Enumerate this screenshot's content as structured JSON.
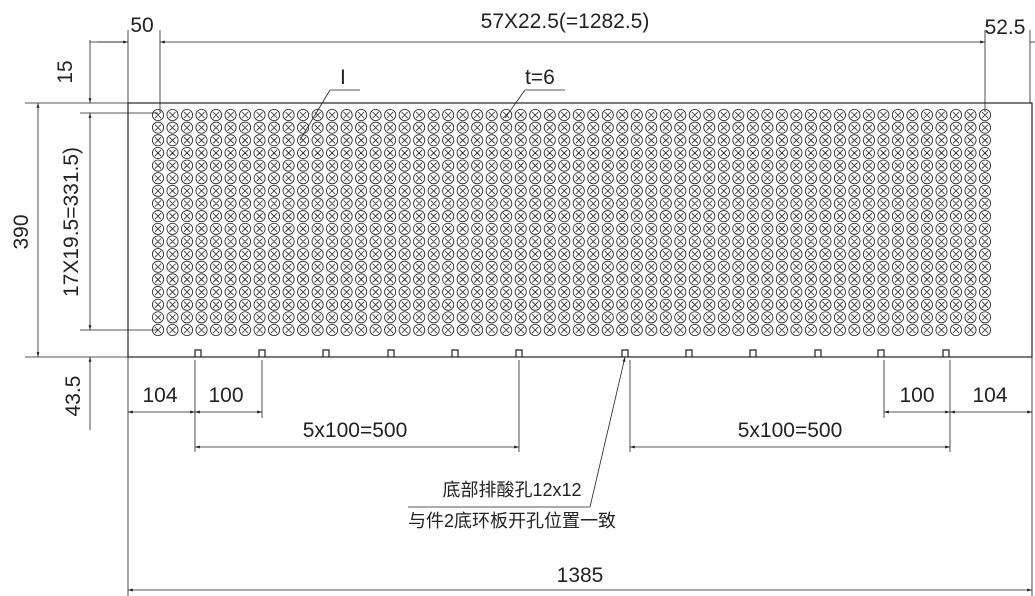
{
  "dimensions": {
    "left_margin": "50",
    "hole_pitch_x": "57X22.5(=1282.5)",
    "right_margin": "52.5",
    "top_margin": "15",
    "total_height": "390",
    "hole_pitch_y": "17X19.5=331.5)",
    "bottom_margin": "43.5",
    "left_edge_offset": "104",
    "left_pitch": "100",
    "left_span": "5x100=500",
    "right_span": "5x100=500",
    "right_pitch": "100",
    "right_edge_offset": "104",
    "total_width": "1385"
  },
  "labels": {
    "detail_mark": "I",
    "thickness": "t=6",
    "drain_note": "底部排酸孔12x12",
    "position_note": "与件2底环板开孔位置一致"
  }
}
